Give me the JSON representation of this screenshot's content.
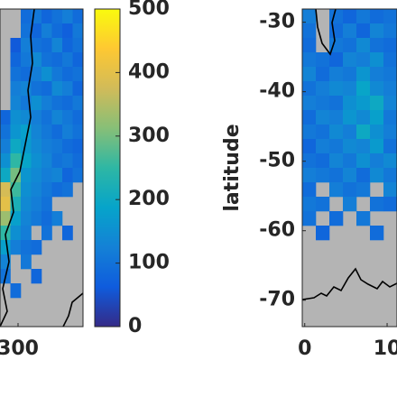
{
  "chart_data": {
    "type": "heatmap",
    "colormap": [
      "#352a87",
      "#0f5cdd",
      "#1481d6",
      "#06a4ca",
      "#2eb7a4",
      "#87bf77",
      "#d1bb59",
      "#fec832",
      "#f9fb0e"
    ],
    "clim": [
      0,
      500
    ],
    "cticks": [
      0,
      100,
      200,
      300,
      400,
      500
    ],
    "panels": [
      {
        "xlim": [
          297.5,
          309
        ],
        "ylim": [
          -73.8,
          -28.1
        ],
        "xticks": [
          300
        ],
        "cells": [
          [
            null,
            null,
            90,
            110,
            80,
            100,
            120,
            90
          ],
          [
            null,
            null,
            100,
            80,
            120,
            90,
            70,
            110
          ],
          [
            null,
            60,
            120,
            100,
            90,
            130,
            80,
            100
          ],
          [
            null,
            80,
            110,
            140,
            100,
            90,
            110,
            80
          ],
          [
            null,
            100,
            90,
            120,
            150,
            110,
            90,
            100
          ],
          [
            null,
            120,
            130,
            100,
            90,
            140,
            120,
            80
          ],
          [
            null,
            130,
            110,
            150,
            120,
            100,
            90,
            110
          ],
          [
            80,
            150,
            140,
            120,
            100,
            130,
            110,
            90
          ],
          [
            100,
            160,
            180,
            130,
            110,
            90,
            120,
            100
          ],
          [
            120,
            200,
            170,
            140,
            120,
            110,
            90,
            80
          ],
          [
            150,
            250,
            190,
            150,
            130,
            100,
            110,
            90
          ],
          [
            200,
            300,
            160,
            140,
            120,
            130,
            80,
            100
          ],
          [
            380,
            260,
            150,
            130,
            110,
            90,
            100,
            null
          ],
          [
            400,
            220,
            140,
            120,
            100,
            null,
            null,
            null
          ],
          [
            330,
            180,
            130,
            110,
            90,
            120,
            null,
            null
          ],
          [
            250,
            150,
            120,
            null,
            100,
            null,
            80,
            null
          ],
          [
            180,
            120,
            100,
            90,
            null,
            null,
            null,
            null
          ],
          [
            130,
            null,
            110,
            null,
            null,
            null,
            null,
            null
          ],
          [
            100,
            null,
            null,
            80,
            null,
            null,
            null,
            null
          ],
          [
            null,
            90,
            null,
            null,
            null,
            null,
            null,
            null
          ],
          [
            null,
            null,
            null,
            null,
            null,
            null,
            null,
            null
          ],
          [
            null,
            null,
            null,
            null,
            null,
            null,
            null,
            null
          ]
        ]
      },
      {
        "ylabel": "latitude",
        "xlim": [
          -0.3,
          11.2
        ],
        "ylim": [
          -73.8,
          -28.1
        ],
        "xticks": [
          0,
          10
        ],
        "yticks": [
          -30,
          -40,
          -50,
          -60,
          -70
        ],
        "cells": [
          [
            120,
            null,
            100,
            80,
            110,
            90,
            100
          ],
          [
            100,
            null,
            90,
            120,
            80,
            130,
            110
          ],
          [
            90,
            null,
            110,
            100,
            140,
            100,
            90
          ],
          [
            110,
            100,
            80,
            130,
            120,
            150,
            100
          ],
          [
            130,
            90,
            120,
            110,
            160,
            120,
            110
          ],
          [
            100,
            120,
            140,
            130,
            190,
            140,
            120
          ],
          [
            120,
            110,
            100,
            150,
            170,
            200,
            130
          ],
          [
            90,
            130,
            120,
            160,
            140,
            180,
            110
          ],
          [
            110,
            100,
            140,
            120,
            200,
            150,
            120
          ],
          [
            80,
            120,
            110,
            140,
            130,
            170,
            100
          ],
          [
            100,
            90,
            130,
            110,
            150,
            120,
            140
          ],
          [
            120,
            110,
            100,
            130,
            90,
            140,
            110
          ],
          [
            90,
            null,
            120,
            100,
            110,
            null,
            130
          ],
          [
            110,
            100,
            null,
            120,
            null,
            100,
            90
          ],
          [
            100,
            null,
            90,
            null,
            110,
            null,
            null
          ],
          [
            null,
            80,
            null,
            null,
            null,
            90,
            null
          ],
          [
            null,
            null,
            null,
            null,
            null,
            null,
            null
          ],
          [
            null,
            null,
            null,
            null,
            null,
            null,
            null
          ],
          [
            null,
            null,
            null,
            null,
            null,
            null,
            null
          ],
          [
            null,
            null,
            null,
            null,
            null,
            null,
            null
          ],
          [
            null,
            null,
            null,
            null,
            null,
            null,
            null
          ],
          [
            null,
            null,
            null,
            null,
            null,
            null,
            null
          ]
        ]
      }
    ]
  }
}
